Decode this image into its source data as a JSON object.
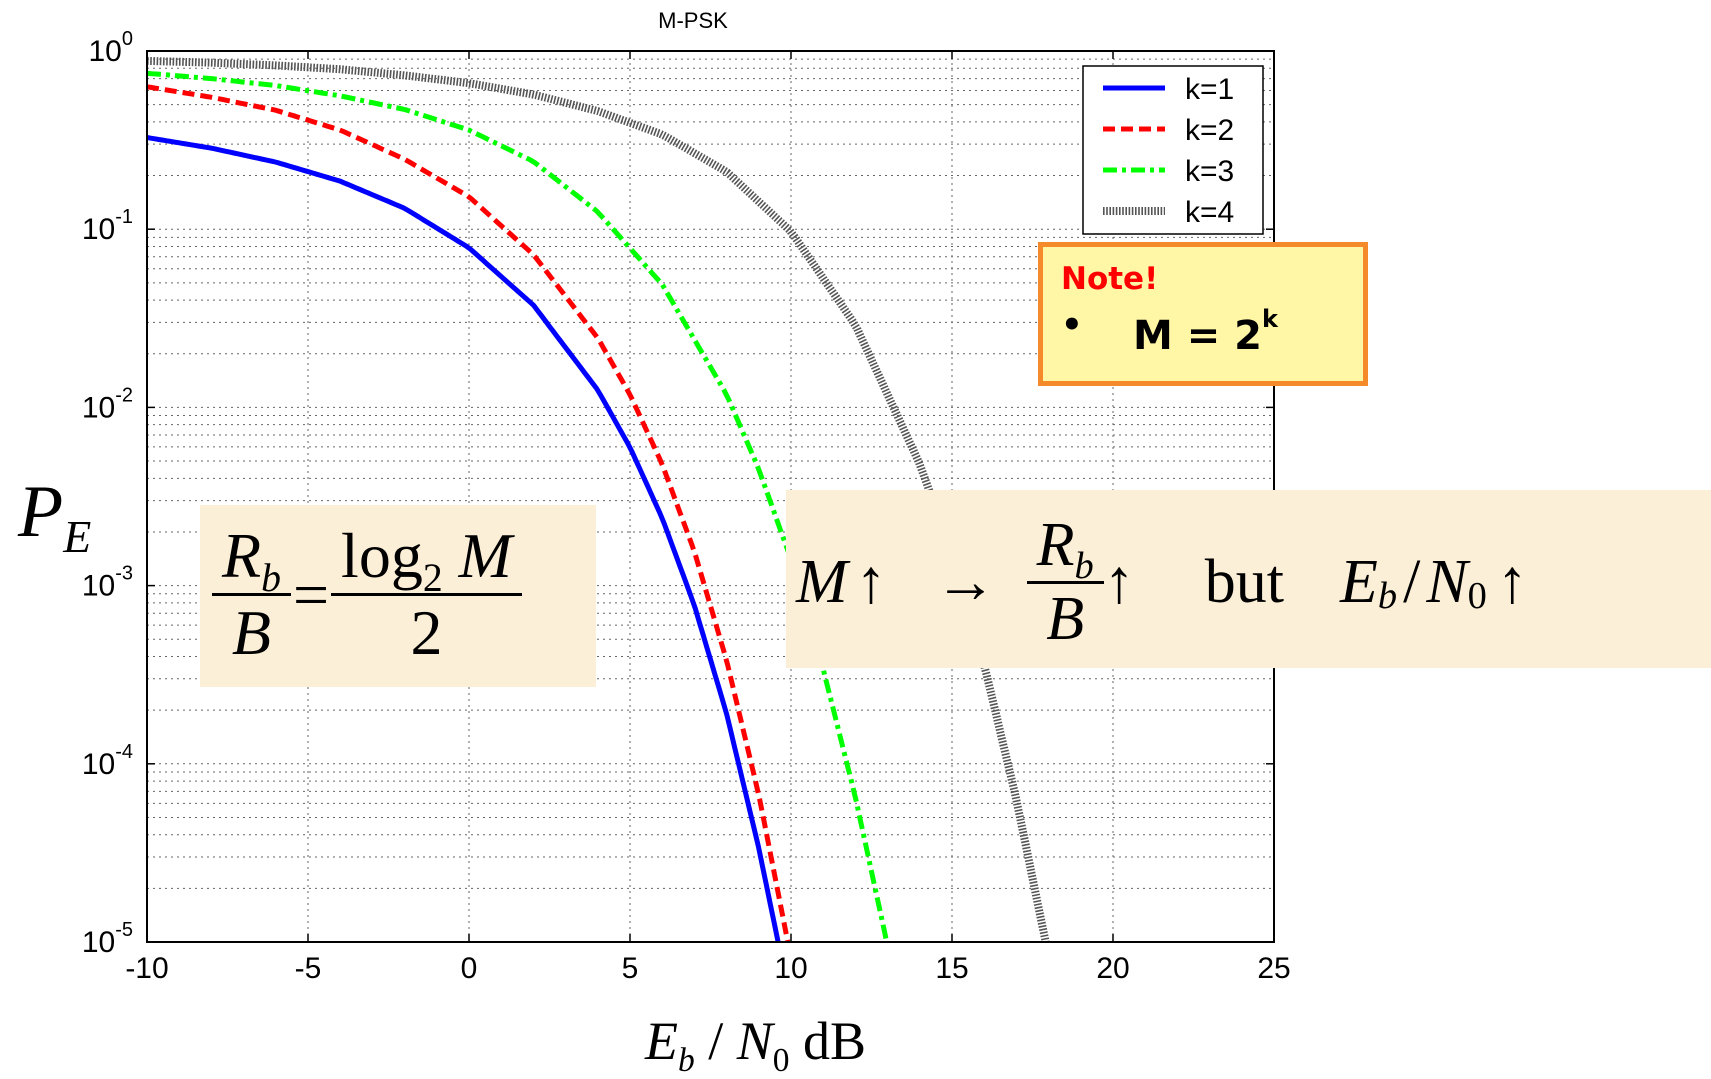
{
  "chart_data": {
    "type": "line",
    "title": "M-PSK",
    "xlabel": "E_b / N_0 dB",
    "ylabel": "P_E",
    "xlim": [
      -10,
      25
    ],
    "ylim": [
      1e-05,
      1
    ],
    "yscale": "log",
    "grid": true,
    "legend_position": "top-right",
    "x_ticks": [
      "-10",
      "-5",
      "0",
      "5",
      "10",
      "15",
      "20",
      "25"
    ],
    "y_tick_bases": [
      "10",
      "10",
      "10",
      "10",
      "10",
      "10"
    ],
    "y_tick_exponents": [
      "0",
      "-1",
      "-2",
      "-3",
      "-4",
      "-5"
    ],
    "series": [
      {
        "name": "k=1",
        "color": "#0000ff",
        "style": "solid",
        "x": [
          -10,
          -8,
          -6,
          -4,
          -2,
          0,
          2,
          4,
          5,
          6,
          7,
          8,
          9,
          9.6
        ],
        "y": [
          0.327,
          0.285,
          0.238,
          0.186,
          0.131,
          0.0786,
          0.0375,
          0.0125,
          0.00597,
          0.00239,
          0.000773,
          0.000191,
          3.36e-05,
          1e-05
        ]
      },
      {
        "name": "k=2",
        "color": "#ff0000",
        "style": "dashed",
        "x": [
          -10,
          -8,
          -6,
          -4,
          -2,
          0,
          2,
          4,
          5,
          6,
          7,
          8,
          9,
          9.9
        ],
        "y": [
          0.63,
          0.55,
          0.465,
          0.36,
          0.247,
          0.152,
          0.072,
          0.0245,
          0.0118,
          0.0048,
          0.00155,
          0.00038,
          6.7e-05,
          1e-05
        ]
      },
      {
        "name": "k=3",
        "color": "#00ff00",
        "style": "dashdot",
        "x": [
          -10,
          -8,
          -6,
          -4,
          -2,
          0,
          2,
          4,
          6,
          8,
          9,
          10,
          11,
          12,
          13,
          13.5
        ],
        "y": [
          0.75,
          0.7,
          0.64,
          0.56,
          0.47,
          0.36,
          0.24,
          0.125,
          0.049,
          0.0118,
          0.0045,
          0.0014,
          0.00034,
          6.5e-05,
          9.5e-06,
          3e-06
        ]
      },
      {
        "name": "k=4",
        "color": "#555555",
        "style": "dotted",
        "x": [
          -10,
          -8,
          -6,
          -4,
          -2,
          0,
          2,
          4,
          6,
          8,
          10,
          12,
          14,
          15,
          16,
          17,
          18
        ],
        "y": [
          0.88,
          0.86,
          0.83,
          0.79,
          0.73,
          0.66,
          0.57,
          0.46,
          0.34,
          0.21,
          0.097,
          0.029,
          0.0048,
          0.0015,
          0.00036,
          6.3e-05,
          8.3e-06
        ]
      }
    ]
  },
  "note": {
    "title": "Note!",
    "bullet": "•",
    "formula_base": "M = 2",
    "formula_exp": "k"
  },
  "rate_equation": {
    "num_left": "R",
    "num_left_sub": "b",
    "den_left": "B",
    "equals": "=",
    "num_right": "log",
    "num_right_sub": "2",
    "num_right_var": "M",
    "den_right": "2"
  },
  "tradeoff": {
    "m": "M",
    "up": "↑",
    "arrow": "→",
    "r": "R",
    "r_sub": "b",
    "b": "B",
    "but": "but",
    "e": "E",
    "e_sub": "b",
    "slash": "/",
    "n": "N",
    "n_sub": "0"
  },
  "axis_labels": {
    "pe": "P",
    "pe_sub": "E",
    "x_e": "E",
    "x_e_sub": "b",
    "x_slash": " / ",
    "x_n": "N",
    "x_n_sub": "0",
    "x_unit": " dB"
  }
}
